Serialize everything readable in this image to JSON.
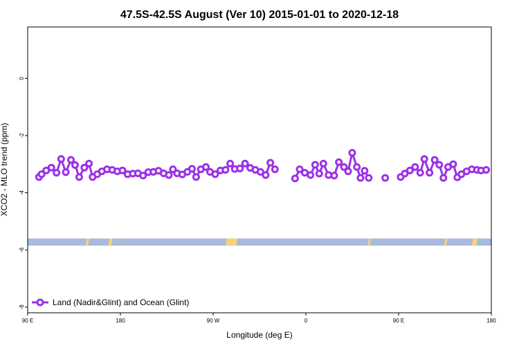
{
  "chart_data": {
    "type": "line",
    "title": "47.5S-42.5S August (Ver 10)   2015-01-01 to 2020-12-18",
    "xlabel": "Longitude (deg E)",
    "ylabel": "XCO2 - MLO trend (ppm)",
    "xlim": [
      90,
      540
    ],
    "ylim": [
      -8.2,
      1.8
    ],
    "x_ticks": [
      {
        "value": 90,
        "label": "90 E"
      },
      {
        "value": 180,
        "label": "180"
      },
      {
        "value": 270,
        "label": "90 W"
      },
      {
        "value": 360,
        "label": "0"
      },
      {
        "value": 450,
        "label": "90 E"
      },
      {
        "value": 540,
        "label": "180"
      }
    ],
    "y_ticks": [
      {
        "value": 0,
        "label": "0"
      },
      {
        "value": -2,
        "label": "-2"
      },
      {
        "value": -4,
        "label": "-4"
      },
      {
        "value": -6,
        "label": "-6"
      },
      {
        "value": -8,
        "label": "-8"
      }
    ],
    "grid": false,
    "legend_position": "bottom-left",
    "series": [
      {
        "name": "Land (Nadir&Glint) and Ocean (Glint)",
        "color": "#9b30e8",
        "marker": "open-circle",
        "segments": [
          [
            [
              101,
              -3.45
            ],
            [
              103.5,
              -3.35
            ],
            [
              108,
              -3.22
            ],
            [
              113,
              -3.12
            ],
            [
              118,
              -3.3
            ],
            [
              122.5,
              -2.82
            ],
            [
              127,
              -3.28
            ],
            [
              132,
              -2.85
            ],
            [
              136,
              -3.03
            ],
            [
              140,
              -3.45
            ],
            [
              145,
              -3.12
            ],
            [
              149.5,
              -2.98
            ],
            [
              153,
              -3.45
            ],
            [
              157.5,
              -3.35
            ],
            [
              162,
              -3.25
            ],
            [
              167,
              -3.18
            ],
            [
              172,
              -3.2
            ],
            [
              177,
              -3.25
            ],
            [
              182,
              -3.22
            ],
            [
              187,
              -3.35
            ],
            [
              192,
              -3.33
            ],
            [
              197,
              -3.32
            ],
            [
              202,
              -3.4
            ],
            [
              207,
              -3.28
            ],
            [
              212,
              -3.27
            ],
            [
              217,
              -3.23
            ],
            [
              222,
              -3.32
            ],
            [
              227,
              -3.38
            ],
            [
              231,
              -3.18
            ],
            [
              235,
              -3.32
            ],
            [
              240,
              -3.36
            ],
            [
              245,
              -3.27
            ],
            [
              249.5,
              -3.16
            ],
            [
              253.5,
              -3.45
            ],
            [
              258,
              -3.18
            ],
            [
              263,
              -3.1
            ],
            [
              267,
              -3.27
            ],
            [
              272,
              -3.35
            ],
            [
              277,
              -3.22
            ],
            [
              282,
              -3.2
            ],
            [
              286.5,
              -2.98
            ],
            [
              291,
              -3.17
            ],
            [
              296,
              -3.15
            ],
            [
              301,
              -2.98
            ],
            [
              306,
              -3.13
            ],
            [
              311,
              -3.2
            ],
            [
              316,
              -3.27
            ],
            [
              321,
              -3.38
            ],
            [
              325.5,
              -2.95
            ],
            [
              330,
              -3.18
            ]
          ],
          [
            [
              349.5,
              -3.5
            ],
            [
              354,
              -3.18
            ],
            [
              359,
              -3.3
            ],
            [
              364.5,
              -3.38
            ],
            [
              369,
              -3.02
            ],
            [
              373,
              -3.33
            ],
            [
              377,
              -2.98
            ],
            [
              382,
              -3.38
            ],
            [
              387.5,
              -3.4
            ],
            [
              392,
              -2.93
            ],
            [
              397,
              -3.1
            ],
            [
              401,
              -3.25
            ],
            [
              405,
              -2.6
            ],
            [
              409.5,
              -3.1
            ],
            [
              413,
              -3.48
            ],
            [
              417,
              -3.23
            ],
            [
              421,
              -3.48
            ]
          ]
        ],
        "isolated_points": [
          [
            437,
            -3.48
          ]
        ],
        "segments_tail": [
          [
            [
              452,
              -3.45
            ],
            [
              456,
              -3.33
            ],
            [
              461,
              -3.22
            ],
            [
              466,
              -3.1
            ],
            [
              471,
              -3.3
            ],
            [
              475,
              -2.82
            ],
            [
              480,
              -3.3
            ],
            [
              485,
              -2.85
            ],
            [
              489.5,
              -3.02
            ],
            [
              493.5,
              -3.48
            ],
            [
              498,
              -3.1
            ],
            [
              503,
              -3.0
            ],
            [
              507,
              -3.46
            ],
            [
              511,
              -3.35
            ],
            [
              516,
              -3.25
            ],
            [
              521,
              -3.18
            ],
            [
              526,
              -3.2
            ],
            [
              530,
              -3.22
            ],
            [
              535,
              -3.2
            ]
          ]
        ]
      }
    ],
    "surface_band": {
      "y_range": [
        -5.6,
        -5.85
      ],
      "ocean_color": "#a7bbdc",
      "land_color": "#f7d27a",
      "land_ranges": [
        [
          146,
          147
        ],
        [
          168,
          170
        ],
        [
          282,
          291
        ],
        [
          420,
          420.5
        ],
        [
          494,
          495
        ],
        [
          521,
          524
        ]
      ]
    }
  }
}
